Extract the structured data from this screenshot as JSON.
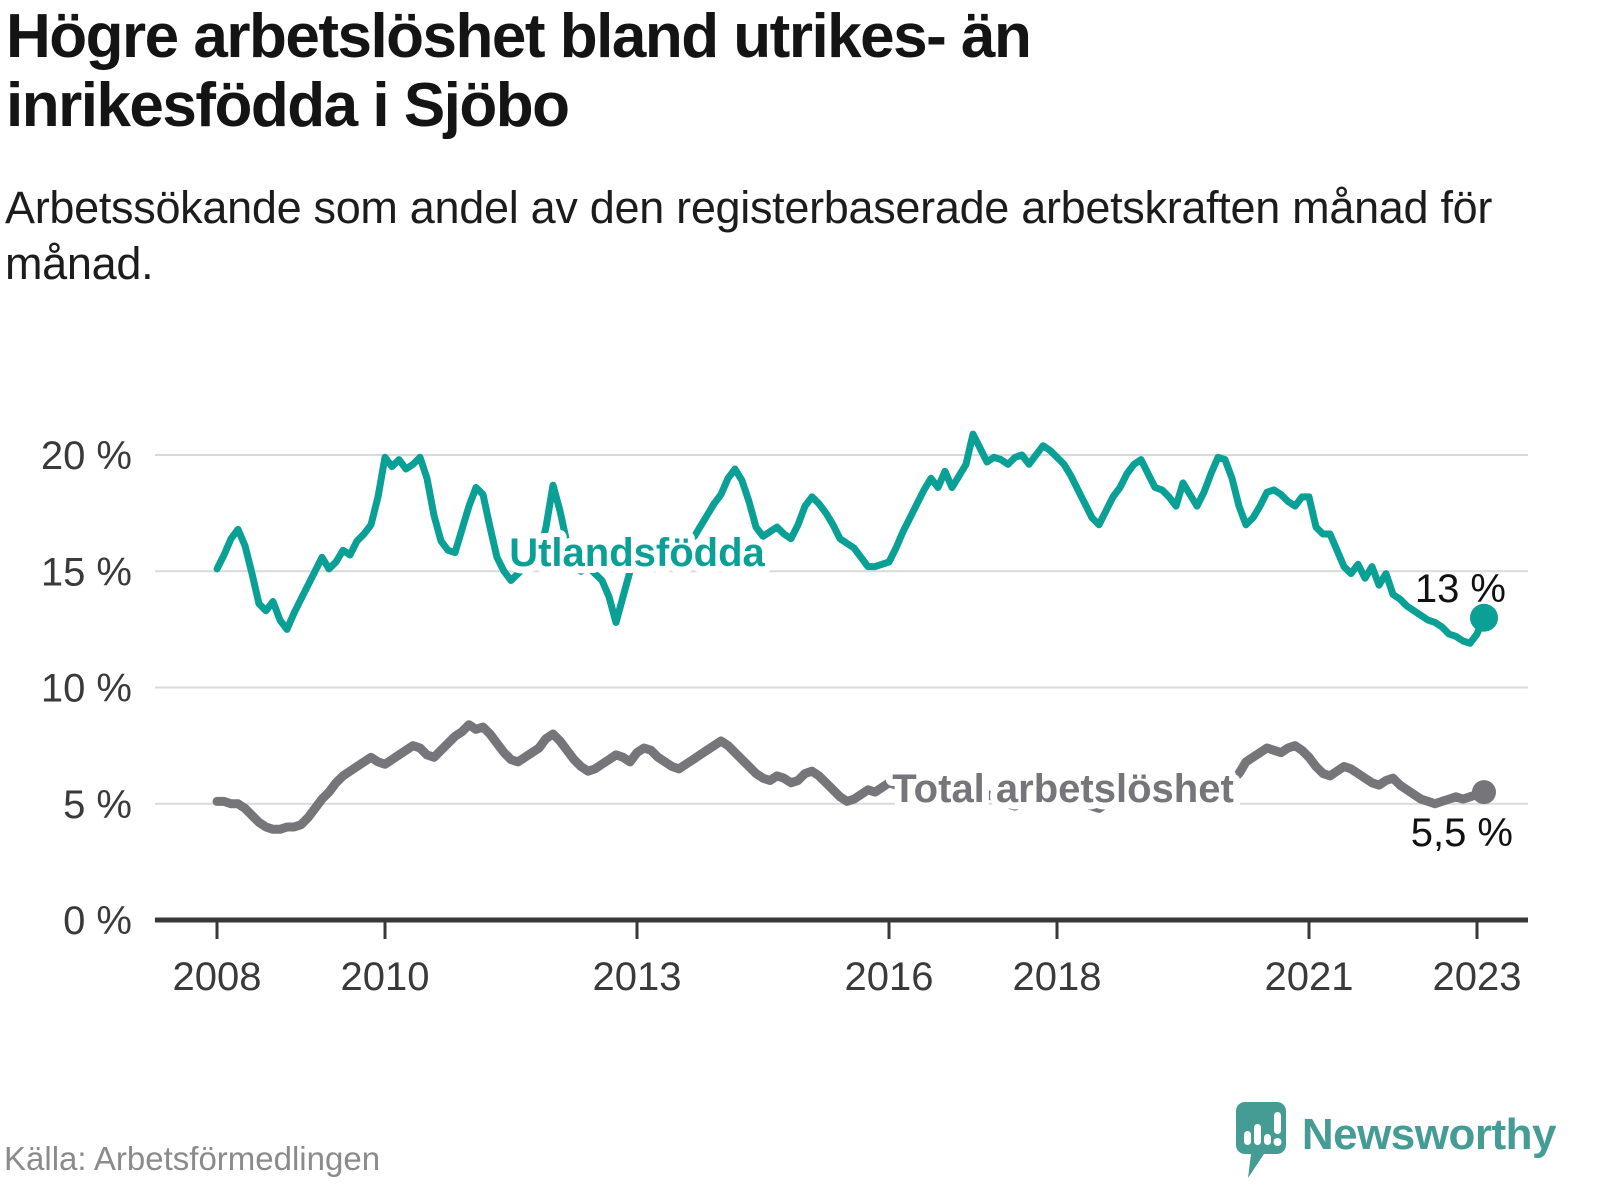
{
  "page": {
    "title": "Högre arbetslöshet bland utrikes- än inrikesfödda i Sjöbo",
    "subtitle": "Arbetssökande som andel av den registerbaserade arbetskraften månad för månad.",
    "source": "Källa: Arbetsförmedlingen",
    "brand": {
      "name": "Newsworthy",
      "color": "#449c94"
    }
  },
  "chart_data": {
    "type": "line",
    "title": "Högre arbetslöshet bland utrikes- än inrikesfödda i Sjöbo",
    "subtitle": "Arbetssökande som andel av den registerbaserade arbetskraften månad för månad.",
    "unit": "%",
    "x_start_year": 2008,
    "x_start_month": 1,
    "x_end_year": 2023,
    "x_end_month": 2,
    "x_tick_years": [
      2008,
      2010,
      2013,
      2016,
      2018,
      2021,
      2023
    ],
    "y_ticks": [
      0,
      5,
      10,
      15,
      20
    ],
    "y_tick_suffix": " %",
    "ylim": [
      0,
      22
    ],
    "grid": "horizontal",
    "legend_position": "inline-labels",
    "colors": {
      "utlandsfodda": "#0aa096",
      "total": "#75757a",
      "grid": "#dadada",
      "axis": "#383838",
      "annotation": "#111111"
    },
    "series": [
      {
        "name": "Utlandsfödda",
        "color": "#0aa096",
        "end_label": "13 %",
        "end_value": 13.0,
        "values": [
          15.1,
          15.7,
          16.4,
          16.8,
          16.1,
          14.9,
          13.6,
          13.3,
          13.7,
          12.9,
          12.5,
          13.2,
          13.8,
          14.4,
          15.0,
          15.6,
          15.1,
          15.4,
          15.9,
          15.7,
          16.3,
          16.6,
          17.0,
          18.2,
          19.9,
          19.5,
          19.8,
          19.4,
          19.6,
          19.9,
          19.0,
          17.4,
          16.3,
          15.9,
          15.8,
          16.8,
          17.8,
          18.6,
          18.3,
          16.9,
          15.6,
          15.0,
          14.6,
          14.9,
          15.2,
          15.4,
          15.7,
          16.9,
          18.7,
          17.6,
          16.2,
          15.3,
          15.0,
          15.2,
          14.9,
          14.6,
          13.9,
          12.8,
          13.9,
          15.0,
          16.2,
          15.8,
          15.5,
          15.3,
          15.2,
          15.4,
          15.6,
          15.9,
          16.4,
          16.9,
          17.4,
          17.9,
          18.3,
          19.0,
          19.4,
          18.9,
          18.0,
          16.9,
          16.5,
          16.7,
          16.9,
          16.6,
          16.4,
          17.0,
          17.8,
          18.2,
          17.9,
          17.5,
          17.0,
          16.4,
          16.2,
          16.0,
          15.6,
          15.2,
          15.2,
          15.3,
          15.4,
          16.0,
          16.7,
          17.3,
          17.9,
          18.5,
          19.0,
          18.6,
          19.3,
          18.6,
          19.1,
          19.6,
          20.9,
          20.3,
          19.7,
          19.9,
          19.8,
          19.6,
          19.9,
          20.0,
          19.6,
          20.0,
          20.4,
          20.2,
          19.9,
          19.6,
          19.1,
          18.5,
          17.9,
          17.3,
          17.0,
          17.6,
          18.2,
          18.6,
          19.2,
          19.6,
          19.8,
          19.2,
          18.6,
          18.5,
          18.2,
          17.8,
          18.8,
          18.3,
          17.8,
          18.4,
          19.2,
          19.9,
          19.8,
          19.0,
          17.8,
          17.0,
          17.3,
          17.8,
          18.4,
          18.5,
          18.3,
          18.0,
          17.8,
          18.2,
          18.2,
          16.9,
          16.6,
          16.6,
          15.9,
          15.2,
          14.9,
          15.3,
          14.7,
          15.2,
          14.4,
          14.9,
          14.0,
          13.8,
          13.5,
          13.3,
          13.1,
          12.9,
          12.8,
          12.6,
          12.3,
          12.2,
          12.0,
          11.9,
          12.3,
          13.0
        ]
      },
      {
        "name": "Total arbetslöshet",
        "color": "#75757a",
        "end_label": "5,5 %",
        "end_value": 5.5,
        "values": [
          5.1,
          5.1,
          5.0,
          5.0,
          4.8,
          4.5,
          4.2,
          4.0,
          3.9,
          3.9,
          4.0,
          4.0,
          4.1,
          4.4,
          4.8,
          5.2,
          5.5,
          5.9,
          6.2,
          6.4,
          6.6,
          6.8,
          7.0,
          6.8,
          6.7,
          6.9,
          7.1,
          7.3,
          7.5,
          7.4,
          7.1,
          7.0,
          7.3,
          7.6,
          7.9,
          8.1,
          8.4,
          8.2,
          8.3,
          8.0,
          7.6,
          7.2,
          6.9,
          6.8,
          7.0,
          7.2,
          7.4,
          7.8,
          8.0,
          7.7,
          7.3,
          6.9,
          6.6,
          6.4,
          6.5,
          6.7,
          6.9,
          7.1,
          7.0,
          6.8,
          7.2,
          7.4,
          7.3,
          7.0,
          6.8,
          6.6,
          6.5,
          6.7,
          6.9,
          7.1,
          7.3,
          7.5,
          7.7,
          7.5,
          7.2,
          6.9,
          6.6,
          6.3,
          6.1,
          6.0,
          6.2,
          6.1,
          5.9,
          6.0,
          6.3,
          6.4,
          6.2,
          5.9,
          5.6,
          5.3,
          5.1,
          5.2,
          5.4,
          5.6,
          5.5,
          5.7,
          5.9,
          5.8,
          5.6,
          5.4,
          5.3,
          5.2,
          5.1,
          5.3,
          5.5,
          5.4,
          5.3,
          5.5,
          5.7,
          5.6,
          5.4,
          5.3,
          5.2,
          5.0,
          4.9,
          5.1,
          5.4,
          5.6,
          5.5,
          5.4,
          5.6,
          5.5,
          5.3,
          5.2,
          5.0,
          4.9,
          4.8,
          5.0,
          5.2,
          5.1,
          5.3,
          5.2,
          5.4,
          5.3,
          5.2,
          5.4,
          5.3,
          5.2,
          5.4,
          5.6,
          5.8,
          5.7,
          5.9,
          6.0,
          5.9,
          6.0,
          6.3,
          6.8,
          7.0,
          7.2,
          7.4,
          7.3,
          7.2,
          7.4,
          7.5,
          7.3,
          7.0,
          6.6,
          6.3,
          6.2,
          6.4,
          6.6,
          6.5,
          6.3,
          6.1,
          5.9,
          5.8,
          6.0,
          6.1,
          5.8,
          5.6,
          5.4,
          5.2,
          5.1,
          5.0,
          5.1,
          5.2,
          5.3,
          5.2,
          5.3,
          5.4,
          5.5
        ]
      }
    ]
  }
}
